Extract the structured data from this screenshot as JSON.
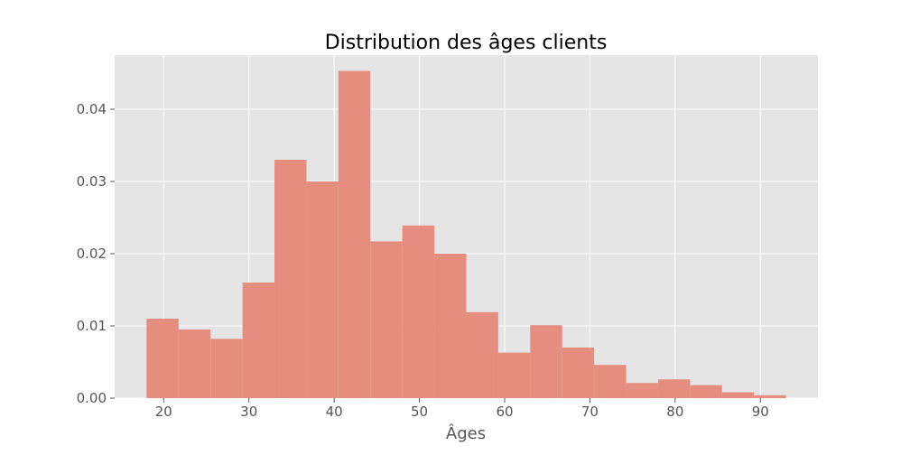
{
  "chart_data": {
    "type": "bar",
    "title": "Distribution des âges clients",
    "xlabel": "Âges",
    "ylabel": "",
    "xlim": [
      14.25,
      96.75
    ],
    "ylim": [
      0,
      0.0475
    ],
    "grid": true,
    "bin_edges": [
      18,
      21.75,
      25.5,
      29.25,
      33,
      36.75,
      40.5,
      44.25,
      48,
      51.75,
      55.5,
      59.25,
      63,
      66.75,
      70.5,
      74.25,
      78,
      81.75,
      85.5,
      89.25,
      93
    ],
    "values": [
      0.011,
      0.0095,
      0.0082,
      0.016,
      0.033,
      0.03,
      0.0453,
      0.0217,
      0.0239,
      0.02,
      0.0119,
      0.0063,
      0.0101,
      0.007,
      0.0046,
      0.0021,
      0.0026,
      0.0018,
      0.0008,
      0.0004
    ],
    "xticks": [
      20,
      30,
      40,
      50,
      60,
      70,
      80,
      90
    ],
    "xtick_labels": [
      "20",
      "30",
      "40",
      "50",
      "60",
      "70",
      "80",
      "90"
    ],
    "yticks": [
      0,
      0.01,
      0.02,
      0.03,
      0.04
    ],
    "ytick_labels": [
      "0.00",
      "0.01",
      "0.02",
      "0.03",
      "0.04"
    ],
    "colors": {
      "bar": "#e58e7f",
      "plot_background": "#e5e5e5",
      "grid": "#ffffff"
    }
  }
}
